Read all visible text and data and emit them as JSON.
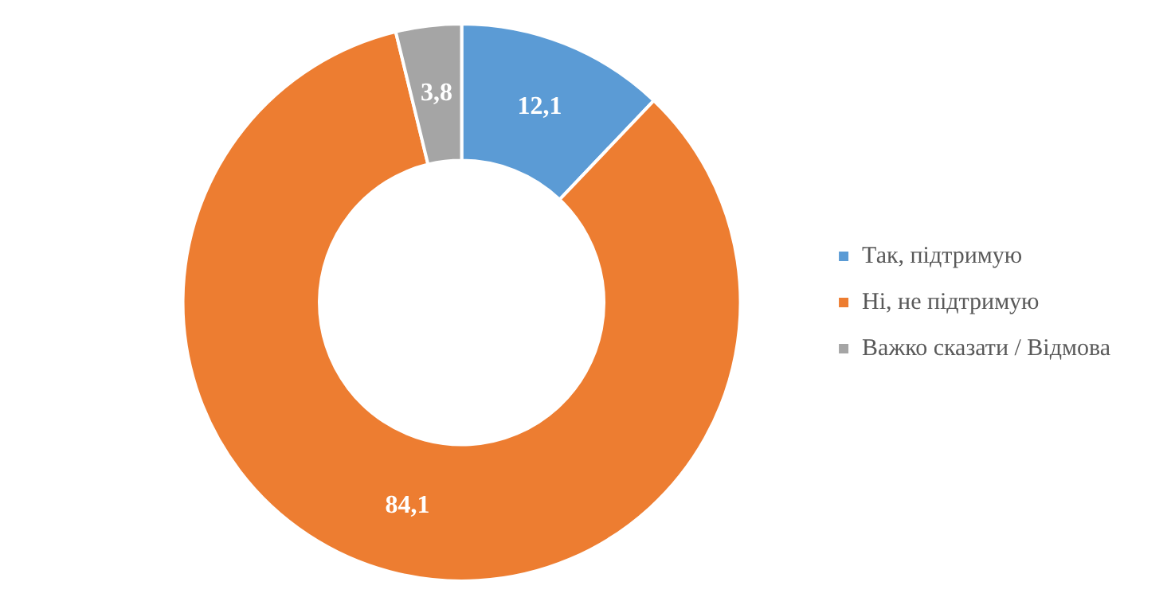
{
  "chart_data": {
    "type": "donut",
    "categories": [
      "Так, підтримую",
      "Ні, не підтримую",
      "Важко сказати / Відмова"
    ],
    "values": [
      12.1,
      84.1,
      3.8
    ],
    "colors": [
      "#5b9bd5",
      "#ed7d31",
      "#a5a5a5"
    ],
    "value_labels": [
      "12,1",
      "84,1",
      "3,8"
    ],
    "legend": "right"
  }
}
